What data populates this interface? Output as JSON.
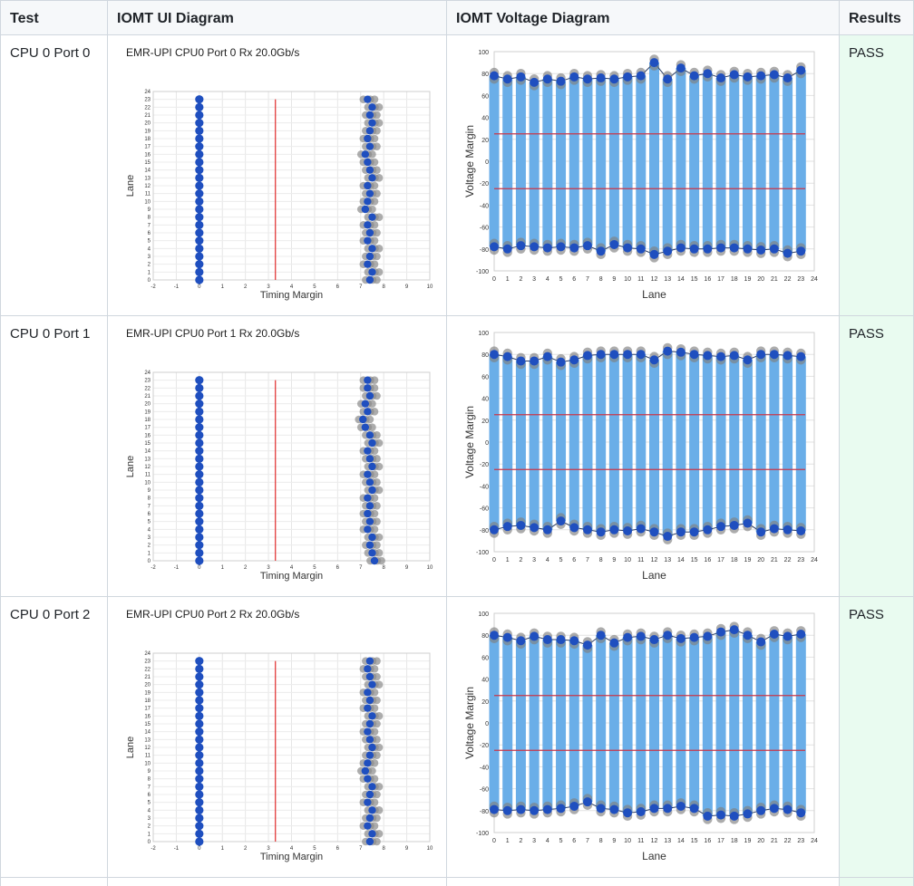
{
  "headers": {
    "test": "Test",
    "ui": "IOMT UI Diagram",
    "voltage": "IOMT Voltage Diagram",
    "results": "Results"
  },
  "rows": [
    {
      "test": "CPU 0 Port 0",
      "result": "PASS",
      "ui_chart": {
        "type": "scatter",
        "title": "EMR-UPI CPU0 Port 0 Rx 20.0Gb/s",
        "xlabel": "Timing Margin",
        "ylabel": "Lane",
        "xlim": [
          -2,
          10
        ],
        "ylim": [
          0,
          24
        ],
        "threshold_x": 3.3,
        "left_margin": [
          0,
          0,
          0,
          0,
          0,
          0,
          0,
          0,
          0,
          0,
          0,
          0,
          0,
          0,
          0,
          0,
          0,
          0,
          0,
          0,
          0,
          0,
          0,
          0
        ],
        "right_margin": [
          7.4,
          7.5,
          7.3,
          7.4,
          7.5,
          7.3,
          7.4,
          7.3,
          7.5,
          7.2,
          7.3,
          7.4,
          7.3,
          7.5,
          7.4,
          7.3,
          7.2,
          7.4,
          7.3,
          7.4,
          7.5,
          7.4,
          7.5,
          7.3
        ]
      },
      "voltage_chart": {
        "type": "bar",
        "xlabel": "Lane",
        "ylabel": "Voltage Margin",
        "ylim": [
          -100,
          100
        ],
        "limits": [
          25,
          -25
        ],
        "top": [
          78,
          75,
          77,
          72,
          75,
          73,
          77,
          75,
          76,
          75,
          77,
          78,
          90,
          75,
          85,
          78,
          80,
          76,
          79,
          77,
          78,
          79,
          76,
          83
        ],
        "bottom": [
          -78,
          -80,
          -77,
          -78,
          -79,
          -78,
          -79,
          -77,
          -82,
          -76,
          -79,
          -80,
          -85,
          -82,
          -79,
          -80,
          -80,
          -79,
          -79,
          -80,
          -81,
          -80,
          -84,
          -82
        ]
      }
    },
    {
      "test": "CPU 0 Port 1",
      "result": "PASS",
      "ui_chart": {
        "type": "scatter",
        "title": "EMR-UPI CPU0 Port 1 Rx 20.0Gb/s",
        "xlabel": "Timing Margin",
        "ylabel": "Lane",
        "xlim": [
          -2,
          10
        ],
        "ylim": [
          0,
          24
        ],
        "threshold_x": 3.3,
        "left_margin": [
          0,
          0,
          0,
          0,
          0,
          0,
          0,
          0,
          0,
          0,
          0,
          0,
          0,
          0,
          0,
          0,
          0,
          0,
          0,
          0,
          0,
          0,
          0,
          0
        ],
        "right_margin": [
          7.6,
          7.5,
          7.4,
          7.5,
          7.3,
          7.4,
          7.3,
          7.4,
          7.3,
          7.5,
          7.4,
          7.3,
          7.5,
          7.4,
          7.3,
          7.5,
          7.4,
          7.2,
          7.1,
          7.3,
          7.2,
          7.4,
          7.3,
          7.3
        ]
      },
      "voltage_chart": {
        "type": "bar",
        "xlabel": "Lane",
        "ylabel": "Voltage Margin",
        "ylim": [
          -100,
          100
        ],
        "limits": [
          25,
          -25
        ],
        "top": [
          80,
          78,
          74,
          74,
          78,
          73,
          75,
          79,
          80,
          80,
          80,
          80,
          75,
          83,
          82,
          80,
          79,
          78,
          79,
          75,
          80,
          80,
          79,
          78
        ],
        "bottom": [
          -80,
          -77,
          -76,
          -78,
          -80,
          -72,
          -78,
          -80,
          -82,
          -80,
          -81,
          -79,
          -82,
          -86,
          -82,
          -82,
          -80,
          -77,
          -76,
          -74,
          -82,
          -79,
          -80,
          -81
        ]
      }
    },
    {
      "test": "CPU 0 Port 2",
      "result": "PASS",
      "ui_chart": {
        "type": "scatter",
        "title": "EMR-UPI CPU0 Port 2 Rx 20.0Gb/s",
        "xlabel": "Timing Margin",
        "ylabel": "Lane",
        "xlim": [
          -2,
          10
        ],
        "ylim": [
          0,
          24
        ],
        "threshold_x": 3.3,
        "left_margin": [
          0,
          0,
          0,
          0,
          0,
          0,
          0,
          0,
          0,
          0,
          0,
          0,
          0,
          0,
          0,
          0,
          0,
          0,
          0,
          0,
          0,
          0,
          0,
          0
        ],
        "right_margin": [
          7.4,
          7.5,
          7.3,
          7.4,
          7.5,
          7.3,
          7.4,
          7.5,
          7.3,
          7.2,
          7.3,
          7.4,
          7.5,
          7.4,
          7.3,
          7.4,
          7.5,
          7.3,
          7.4,
          7.3,
          7.5,
          7.4,
          7.3,
          7.4
        ]
      },
      "voltage_chart": {
        "type": "bar",
        "xlabel": "Lane",
        "ylabel": "Voltage Margin",
        "ylim": [
          -100,
          100
        ],
        "limits": [
          25,
          -25
        ],
        "top": [
          80,
          78,
          75,
          79,
          76,
          76,
          75,
          71,
          80,
          73,
          78,
          79,
          76,
          80,
          77,
          78,
          79,
          83,
          85,
          80,
          74,
          81,
          79,
          81
        ],
        "bottom": [
          -79,
          -80,
          -79,
          -80,
          -79,
          -78,
          -76,
          -72,
          -78,
          -79,
          -82,
          -81,
          -78,
          -78,
          -76,
          -78,
          -85,
          -84,
          -85,
          -83,
          -80,
          -78,
          -79,
          -82
        ]
      }
    }
  ]
}
